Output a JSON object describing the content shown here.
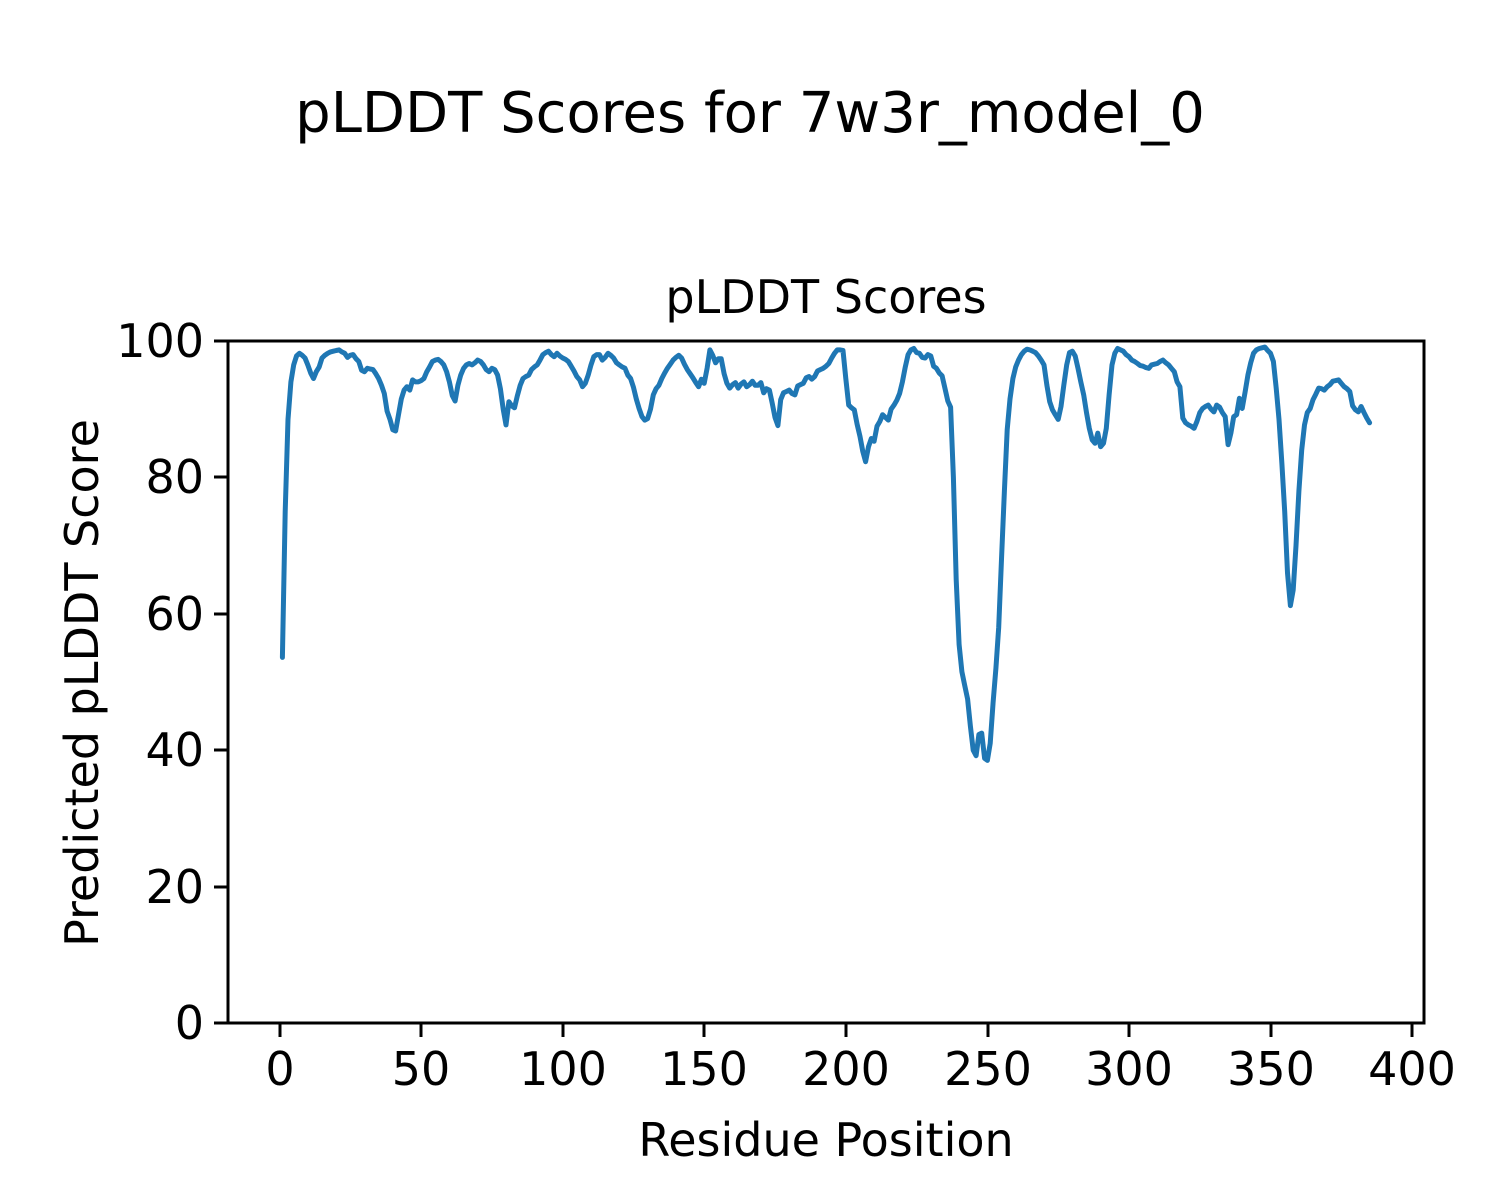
{
  "figure": {
    "suptitle": "pLDDT Scores for 7w3r_model_0",
    "background_color": "#ffffff",
    "text_color": "#000000"
  },
  "chart_data": {
    "type": "line",
    "title": "pLDDT Scores",
    "xlabel": "Residue Position",
    "ylabel": "Predicted pLDDT Score",
    "xlim": [
      -18.2,
      404.2
    ],
    "ylim": [
      0,
      100
    ],
    "xticks": [
      0,
      50,
      100,
      150,
      200,
      250,
      300,
      350,
      400
    ],
    "yticks": [
      0,
      20,
      40,
      60,
      80,
      100
    ],
    "grid": false,
    "line_color": "#1f77b4",
    "line_width": 5,
    "series": [
      {
        "name": "pLDDT",
        "x_start": 1,
        "x_step": 1,
        "values": [
          53.6,
          75,
          88.5,
          94,
          96.5,
          97.8,
          98.2,
          97.9,
          97.5,
          96.5,
          95.3,
          94.5,
          95.5,
          96.2,
          97.5,
          97.9,
          98.2,
          98.4,
          98.5,
          98.6,
          98.7,
          98.4,
          98.2,
          97.6,
          97.9,
          98,
          97.4,
          97,
          95.7,
          95.5,
          96,
          95.9,
          95.8,
          95.2,
          94.5,
          93.5,
          92.3,
          89.7,
          88.5,
          87,
          86.8,
          89.2,
          91.5,
          92.8,
          93.3,
          92.8,
          94.3,
          94,
          94,
          94.2,
          94.5,
          95.5,
          96.2,
          97,
          97.2,
          97.3,
          97,
          96.5,
          95.5,
          94,
          92,
          91.2,
          93.5,
          95,
          96,
          96.5,
          96.7,
          96.5,
          96.8,
          97.2,
          97,
          96.5,
          95.8,
          95.5,
          96,
          95.8,
          95,
          93,
          90,
          87.7,
          91.1,
          90.5,
          90.2,
          92,
          93.5,
          94.5,
          94.8,
          95,
          95.8,
          96.2,
          96.5,
          97.2,
          98,
          98.3,
          98.5,
          98,
          97.7,
          98.2,
          97.8,
          97.5,
          97.3,
          97,
          96.3,
          95.6,
          94.8,
          94.3,
          93.3,
          93.8,
          95,
          96.5,
          97.7,
          98,
          98,
          97.2,
          97.6,
          98.2,
          97.9,
          97.5,
          96.8,
          96.5,
          96.2,
          96,
          95,
          94.5,
          93.2,
          91.5,
          90.1,
          88.9,
          88.4,
          88.6,
          90,
          92.1,
          93,
          93.5,
          94.5,
          95.3,
          96,
          96.6,
          97.2,
          97.6,
          97.9,
          97.5,
          96.6,
          95.8,
          95.2,
          94.6,
          93.9,
          93.3,
          94.4,
          93.8,
          96,
          98.7,
          97.9,
          96.8,
          97.4,
          97.4,
          95.2,
          93.8,
          93.1,
          93.6,
          93.9,
          93.1,
          93.7,
          94,
          93.3,
          93.6,
          94.1,
          93.5,
          93.5,
          93.9,
          92.4,
          93,
          92.8,
          90.9,
          88.8,
          87.6,
          91.4,
          92.4,
          92.6,
          92.8,
          92.3,
          92.1,
          93.4,
          93.6,
          93.8,
          94.6,
          94.8,
          94.4,
          94.8,
          95.6,
          95.8,
          96,
          96.3,
          96.7,
          97.5,
          98.2,
          98.7,
          98.7,
          98.6,
          94.5,
          90.6,
          90.2,
          89.9,
          87.8,
          86,
          83.8,
          82.3,
          84.5,
          85.7,
          85.3,
          87.5,
          88.2,
          89.2,
          88.8,
          88.4,
          90,
          90.6,
          91.3,
          92.3,
          94,
          96.2,
          98,
          98.7,
          98.9,
          98.3,
          98.2,
          97.6,
          97.5,
          98,
          97.8,
          96.3,
          96,
          95.3,
          94.9,
          93.1,
          91.2,
          90.3,
          80,
          65,
          55.5,
          51.5,
          49.5,
          47.5,
          43.5,
          40,
          39.2,
          42.3,
          42.5,
          38.8,
          38.5,
          41,
          47,
          52,
          58,
          68,
          78,
          87,
          91.5,
          94.5,
          96.2,
          97.2,
          98,
          98.5,
          98.8,
          98.7,
          98.5,
          98.3,
          97.8,
          97.2,
          96.5,
          93.5,
          91.1,
          89.9,
          89.2,
          88.5,
          90.4,
          93.5,
          96.5,
          98.3,
          98.5,
          97.8,
          96,
          94,
          92.1,
          89.5,
          87.2,
          85.5,
          85,
          86.5,
          84.5,
          85,
          87.2,
          92.1,
          96.5,
          98.2,
          98.9,
          98.7,
          98.5,
          98,
          97.7,
          97.2,
          97,
          96.7,
          96.4,
          96.3,
          96.1,
          96,
          96.5,
          96.6,
          96.7,
          97,
          97.2,
          96.8,
          96.5,
          96,
          95.5,
          94,
          93.3,
          88.7,
          88,
          87.7,
          87.5,
          87.2,
          88.2,
          89.5,
          90.1,
          90.4,
          90.6,
          90,
          89.6,
          90.6,
          90.3,
          89.5,
          88.9,
          84.8,
          86.5,
          88.9,
          89.2,
          91.6,
          90.1,
          92.5,
          95,
          96.8,
          98.2,
          98.7,
          98.9,
          99,
          99.1,
          98.6,
          98.2,
          97,
          93.1,
          88.5,
          82,
          75,
          66,
          61.2,
          63.5,
          70,
          78,
          84,
          87.7,
          89.5,
          90.1,
          91.4,
          92.2,
          93.1,
          93,
          92.8,
          93.3,
          93.6,
          94.1,
          94.2,
          94.3,
          93.8,
          93.3,
          93,
          92.6,
          90.5,
          89.9,
          89.6,
          90.4,
          89.5,
          88.7,
          88
        ]
      }
    ]
  }
}
